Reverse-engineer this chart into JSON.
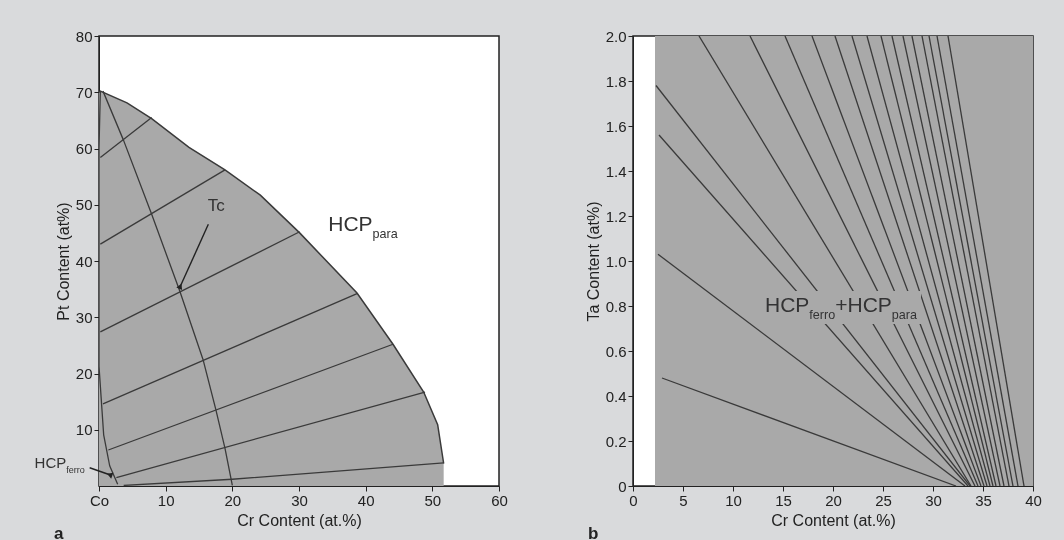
{
  "chart_data": [
    {
      "type": "line",
      "xlabel": "Cr Content (at.%)",
      "ylabel": "Pt Content (at%)",
      "xlim": [
        0,
        60
      ],
      "ylim": [
        0,
        80
      ],
      "xticks": [
        {
          "value": 0,
          "label": "Co"
        },
        10,
        20,
        30,
        40,
        50,
        60
      ],
      "yticks": [
        10,
        20,
        30,
        40,
        50,
        60,
        70,
        80
      ],
      "annotations": [
        {
          "text": "Tc",
          "x": 12.2,
          "y": 35.5
        },
        "HCP$_{para}$",
        {
          "text": "HCP$_{ferro}$",
          "x": 1.6,
          "y": 2
        },
        "a"
      ],
      "series": [
        {
          "type": "area",
          "color": "#a9a9a9",
          "x": [
            0,
            0.2,
            4.2,
            7.9,
            13.5,
            18.9,
            24.2,
            30.1,
            38.7,
            44.1,
            48.7,
            50.8,
            51.7,
            51.7
          ],
          "values": [
            70,
            70.2,
            68.1,
            65.3,
            60.2,
            56.2,
            51.7,
            45,
            34.3,
            25.2,
            16.7,
            10.9,
            4,
            0
          ]
        },
        {
          "type": "line",
          "color": "#3a3a3a",
          "x": [
            0.2,
            0,
            0,
            0.7,
            1.6,
            2.8
          ],
          "values": [
            70.2,
            60,
            21.3,
            9.1,
            3.6,
            0.3
          ]
        },
        {
          "type": "line",
          "color": "#3a3a3a",
          "x": [
            0.2,
            7.9
          ],
          "values": [
            58.4,
            65.5
          ]
        },
        {
          "type": "line",
          "color": "#3a3a3a",
          "x": [
            0.2,
            18.9
          ],
          "values": [
            43,
            56.2
          ]
        },
        {
          "type": "line",
          "color": "#3a3a3a",
          "x": [
            0.2,
            30.1
          ],
          "values": [
            27.4,
            45.2
          ]
        },
        {
          "type": "line",
          "color": "#3a3a3a",
          "x": [
            0.6,
            38.7
          ],
          "values": [
            14.6,
            34.2
          ]
        },
        {
          "type": "line",
          "color": "#3a3a3a",
          "x": [
            1.4,
            44.1
          ],
          "values": [
            6.4,
            25.2
          ]
        },
        {
          "type": "line",
          "color": "#3a3a3a",
          "x": [
            2.6,
            48.9
          ],
          "values": [
            1.5,
            16.7
          ]
        },
        {
          "type": "line",
          "color": "#3a3a3a",
          "x": [
            3.7,
            20,
            51.7
          ],
          "values": [
            0.1,
            1.2,
            4.1
          ]
        },
        {
          "type": "line",
          "color": "#3a3a3a",
          "x": [
            0.6,
            3.7,
            7.9,
            12.1,
            15.6,
            17.5,
            18.9,
            20
          ],
          "values": [
            70.2,
            61.4,
            48.3,
            34.7,
            22.5,
            13.7,
            6.7,
            0.1
          ]
        }
      ]
    },
    {
      "type": "line",
      "xlabel": "Cr Content (at.%)",
      "ylabel": "Ta Content (at%)",
      "xlim": [
        0,
        40
      ],
      "ylim": [
        0,
        2
      ],
      "xticks": [
        0,
        5,
        10,
        15,
        20,
        25,
        30,
        35,
        40
      ],
      "yticks": [
        0,
        0.2,
        0.4,
        0.6,
        0.8,
        {
          "value": 1,
          "label": "1.0"
        },
        1.2,
        1.4,
        1.6,
        1.8,
        {
          "value": 2,
          "label": "2.0"
        }
      ],
      "annotations": [
        "HCP$_{ferro}$+HCP$_{para}$",
        "b"
      ],
      "bands": [
        {
          "axis": "x",
          "from": 2.2,
          "to": 40,
          "color": "#a9a9a9"
        }
      ],
      "series": [
        {
          "type": "line",
          "color": "#3a3a3a",
          "x": [
            2.9,
            32.3
          ],
          "values": [
            0.48,
            0
          ]
        },
        {
          "type": "line",
          "color": "#3a3a3a",
          "x": [
            2.5,
            33.2
          ],
          "values": [
            1.03,
            0
          ]
        },
        {
          "type": "line",
          "color": "#3a3a3a",
          "x": [
            2.6,
            33.5
          ],
          "values": [
            1.56,
            0
          ]
        },
        {
          "type": "line",
          "color": "#3a3a3a",
          "x": [
            2.3,
            33.7
          ],
          "values": [
            1.78,
            0
          ]
        },
        {
          "type": "line",
          "color": "#3a3a3a",
          "x": [
            6.6,
            33.8
          ],
          "values": [
            2,
            0
          ]
        },
        {
          "type": "line",
          "color": "#3a3a3a",
          "x": [
            11.7,
            34.2
          ],
          "values": [
            2,
            0
          ]
        },
        {
          "type": "line",
          "color": "#3a3a3a",
          "x": [
            15.2,
            34.5
          ],
          "values": [
            2,
            0
          ]
        },
        {
          "type": "line",
          "color": "#3a3a3a",
          "x": [
            17.9,
            34.8
          ],
          "values": [
            2,
            0
          ]
        },
        {
          "type": "line",
          "color": "#3a3a3a",
          "x": [
            20.2,
            35.1
          ],
          "values": [
            2,
            0
          ]
        },
        {
          "type": "line",
          "color": "#3a3a3a",
          "x": [
            21.9,
            35.4
          ],
          "values": [
            2,
            0
          ]
        },
        {
          "type": "line",
          "color": "#3a3a3a",
          "x": [
            23.4,
            35.7
          ],
          "values": [
            2,
            0
          ]
        },
        {
          "type": "line",
          "color": "#3a3a3a",
          "x": [
            24.8,
            36
          ],
          "values": [
            2,
            0
          ]
        },
        {
          "type": "line",
          "color": "#3a3a3a",
          "x": [
            25.9,
            36.3
          ],
          "values": [
            2,
            0
          ]
        },
        {
          "type": "line",
          "color": "#3a3a3a",
          "x": [
            27,
            36.7
          ],
          "values": [
            2,
            0
          ]
        },
        {
          "type": "line",
          "color": "#3a3a3a",
          "x": [
            27.9,
            37.1
          ],
          "values": [
            2,
            0
          ]
        },
        {
          "type": "line",
          "color": "#3a3a3a",
          "x": [
            28.9,
            37.6
          ],
          "values": [
            2,
            0
          ]
        },
        {
          "type": "line",
          "color": "#3a3a3a",
          "x": [
            29.6,
            38
          ],
          "values": [
            2,
            0
          ]
        },
        {
          "type": "line",
          "color": "#3a3a3a",
          "x": [
            30.4,
            38.5
          ],
          "values": [
            2,
            0
          ]
        },
        {
          "type": "line",
          "color": "#3a3a3a",
          "x": [
            31.5,
            39.1
          ],
          "values": [
            2,
            0
          ]
        }
      ]
    }
  ]
}
